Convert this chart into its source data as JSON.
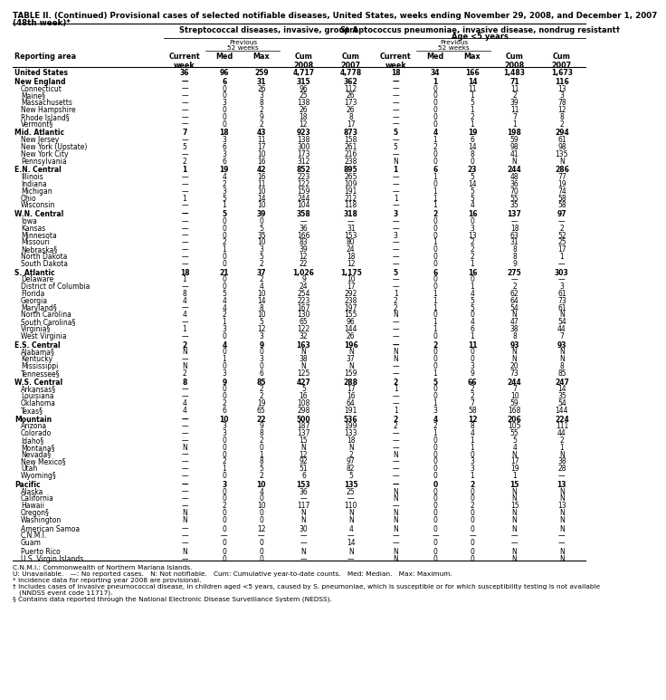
{
  "title_line1": "TABLE II. (Continued) Provisional cases of selected notifiable diseases, United States, weeks ending November 29, 2008, and December 1, 2007",
  "title_line2": "(48th week)*",
  "col_group1": "Streptococcal diseases, invasive, group A",
  "col_group2_line1": "Streptococcus pneumoniae, invasive disease, nondrug resistant†",
  "col_group2_line2": "Age <5 years",
  "footnotes": [
    "C.N.M.I.: Commonwealth of Northern Mariana Islands.",
    "U: Unavailable.   —: No reported cases.   N: Not notifiable.   Cum: Cumulative year-to-date counts.   Med: Median.   Max: Maximum.",
    "* Incidence data for reporting year 2008 are provisional.",
    "† Includes cases of invasive pneumococcal disease, in children aged <5 years, caused by S. pneumoniae, which is susceptible or for which susceptibility testing is not available",
    "   (NNDSS event code 11717).",
    "§ Contains data reported through the National Electronic Disease Surveillance System (NEDSS)."
  ],
  "rows": [
    [
      "United States",
      "36",
      "96",
      "259",
      "4,717",
      "4,778",
      "18",
      "34",
      "166",
      "1,483",
      "1,673"
    ],
    [
      "New England",
      "—",
      "6",
      "31",
      "315",
      "362",
      "—",
      "1",
      "14",
      "71",
      "116"
    ],
    [
      "Connecticut",
      "—",
      "0",
      "26",
      "96",
      "112",
      "—",
      "0",
      "11",
      "11",
      "13"
    ],
    [
      "Maine§",
      "—",
      "0",
      "3",
      "25",
      "26",
      "—",
      "0",
      "1",
      "2",
      "3"
    ],
    [
      "Massachusetts",
      "—",
      "3",
      "8",
      "138",
      "173",
      "—",
      "0",
      "5",
      "39",
      "78"
    ],
    [
      "New Hampshire",
      "—",
      "0",
      "2",
      "26",
      "26",
      "—",
      "0",
      "1",
      "11",
      "12"
    ],
    [
      "Rhode Island§",
      "—",
      "0",
      "9",
      "18",
      "8",
      "—",
      "0",
      "2",
      "7",
      "8"
    ],
    [
      "Vermont§",
      "—",
      "0",
      "2",
      "12",
      "17",
      "—",
      "0",
      "1",
      "1",
      "2"
    ],
    [
      "Mid. Atlantic",
      "7",
      "18",
      "43",
      "923",
      "873",
      "5",
      "4",
      "19",
      "198",
      "294"
    ],
    [
      "New Jersey",
      "—",
      "3",
      "11",
      "138",
      "158",
      "—",
      "1",
      "6",
      "59",
      "61"
    ],
    [
      "New York (Upstate)",
      "5",
      "6",
      "17",
      "300",
      "261",
      "5",
      "2",
      "14",
      "98",
      "98"
    ],
    [
      "New York City",
      "—",
      "3",
      "10",
      "173",
      "216",
      "—",
      "0",
      "8",
      "41",
      "135"
    ],
    [
      "Pennsylvania",
      "2",
      "6",
      "16",
      "312",
      "238",
      "N",
      "0",
      "0",
      "N",
      "N"
    ],
    [
      "E.N. Central",
      "1",
      "19",
      "42",
      "852",
      "895",
      "1",
      "6",
      "23",
      "244",
      "286"
    ],
    [
      "Illinois",
      "—",
      "4",
      "16",
      "223",
      "265",
      "—",
      "1",
      "5",
      "48",
      "77"
    ],
    [
      "Indiana",
      "—",
      "2",
      "11",
      "122",
      "109",
      "—",
      "0",
      "14",
      "36",
      "19"
    ],
    [
      "Michigan",
      "—",
      "3",
      "10",
      "159",
      "191",
      "—",
      "1",
      "5",
      "70",
      "74"
    ],
    [
      "Ohio",
      "1",
      "5",
      "14",
      "244",
      "212",
      "1",
      "1",
      "5",
      "55",
      "58"
    ],
    [
      "Wisconsin",
      "—",
      "1",
      "10",
      "104",
      "118",
      "—",
      "1",
      "4",
      "35",
      "58"
    ],
    [
      "W.N. Central",
      "—",
      "5",
      "39",
      "358",
      "318",
      "3",
      "2",
      "16",
      "137",
      "97"
    ],
    [
      "Iowa",
      "—",
      "0",
      "0",
      "—",
      "—",
      "—",
      "0",
      "0",
      "—",
      "—"
    ],
    [
      "Kansas",
      "—",
      "0",
      "5",
      "36",
      "31",
      "—",
      "0",
      "3",
      "18",
      "2"
    ],
    [
      "Minnesota",
      "—",
      "0",
      "35",
      "166",
      "153",
      "3",
      "0",
      "13",
      "63",
      "52"
    ],
    [
      "Missouri",
      "—",
      "2",
      "10",
      "83",
      "80",
      "—",
      "1",
      "2",
      "31",
      "25"
    ],
    [
      "Nebraska§",
      "—",
      "1",
      "3",
      "39",
      "24",
      "—",
      "0",
      "2",
      "8",
      "17"
    ],
    [
      "North Dakota",
      "—",
      "0",
      "5",
      "12",
      "18",
      "—",
      "0",
      "2",
      "8",
      "1"
    ],
    [
      "South Dakota",
      "—",
      "0",
      "2",
      "22",
      "12",
      "—",
      "0",
      "1",
      "9",
      "—"
    ],
    [
      "S. Atlantic",
      "18",
      "21",
      "37",
      "1,026",
      "1,175",
      "5",
      "6",
      "16",
      "275",
      "303"
    ],
    [
      "Delaware",
      "1",
      "0",
      "2",
      "9",
      "10",
      "—",
      "0",
      "0",
      "—",
      "—"
    ],
    [
      "District of Columbia",
      "—",
      "0",
      "4",
      "24",
      "17",
      "—",
      "0",
      "1",
      "2",
      "3"
    ],
    [
      "Florida",
      "8",
      "5",
      "10",
      "254",
      "292",
      "1",
      "1",
      "4",
      "62",
      "61"
    ],
    [
      "Georgia",
      "4",
      "4",
      "14",
      "223",
      "238",
      "2",
      "1",
      "5",
      "64",
      "73"
    ],
    [
      "Maryland§",
      "—",
      "4",
      "8",
      "167",
      "197",
      "2",
      "1",
      "5",
      "54",
      "61"
    ],
    [
      "North Carolina",
      "4",
      "2",
      "10",
      "130",
      "155",
      "N",
      "0",
      "0",
      "N",
      "N"
    ],
    [
      "South Carolina§",
      "—",
      "1",
      "5",
      "65",
      "96",
      "—",
      "1",
      "4",
      "47",
      "54"
    ],
    [
      "Virginia§",
      "1",
      "3",
      "12",
      "122",
      "144",
      "—",
      "1",
      "6",
      "38",
      "44"
    ],
    [
      "West Virginia",
      "—",
      "0",
      "3",
      "32",
      "26",
      "—",
      "0",
      "1",
      "8",
      "7"
    ],
    [
      "E.S. Central",
      "2",
      "4",
      "9",
      "163",
      "196",
      "—",
      "2",
      "11",
      "93",
      "93"
    ],
    [
      "Alabama§",
      "N",
      "0",
      "0",
      "N",
      "N",
      "N",
      "0",
      "0",
      "N",
      "N"
    ],
    [
      "Kentucky",
      "—",
      "1",
      "3",
      "38",
      "37",
      "N",
      "0",
      "0",
      "N",
      "N"
    ],
    [
      "Mississippi",
      "N",
      "0",
      "0",
      "N",
      "N",
      "—",
      "0",
      "3",
      "20",
      "8"
    ],
    [
      "Tennessee§",
      "2",
      "3",
      "6",
      "125",
      "159",
      "—",
      "1",
      "9",
      "73",
      "85"
    ],
    [
      "W.S. Central",
      "8",
      "9",
      "85",
      "427",
      "288",
      "2",
      "5",
      "66",
      "244",
      "247"
    ],
    [
      "Arkansas§",
      "—",
      "0",
      "2",
      "5",
      "17",
      "1",
      "0",
      "2",
      "7",
      "14"
    ],
    [
      "Louisiana",
      "—",
      "0",
      "2",
      "16",
      "16",
      "—",
      "0",
      "2",
      "10",
      "35"
    ],
    [
      "Oklahoma",
      "4",
      "2",
      "19",
      "108",
      "64",
      "—",
      "1",
      "7",
      "59",
      "54"
    ],
    [
      "Texas§",
      "4",
      "6",
      "65",
      "298",
      "191",
      "1",
      "3",
      "58",
      "168",
      "144"
    ],
    [
      "Mountain",
      "—",
      "10",
      "22",
      "500",
      "536",
      "2",
      "4",
      "12",
      "206",
      "224"
    ],
    [
      "Arizona",
      "—",
      "3",
      "9",
      "187",
      "199",
      "2",
      "2",
      "8",
      "105",
      "111"
    ],
    [
      "Colorado",
      "—",
      "3",
      "8",
      "137",
      "133",
      "—",
      "1",
      "4",
      "55",
      "44"
    ],
    [
      "Idaho§",
      "—",
      "0",
      "2",
      "15",
      "18",
      "—",
      "0",
      "1",
      "5",
      "2"
    ],
    [
      "Montana§",
      "N",
      "0",
      "0",
      "N",
      "N",
      "—",
      "0",
      "1",
      "4",
      "1"
    ],
    [
      "Nevada§",
      "—",
      "0",
      "1",
      "12",
      "2",
      "N",
      "0",
      "0",
      "N",
      "N"
    ],
    [
      "New Mexico§",
      "—",
      "2",
      "8",
      "92",
      "97",
      "—",
      "0",
      "3",
      "17",
      "38"
    ],
    [
      "Utah",
      "—",
      "1",
      "5",
      "51",
      "82",
      "—",
      "0",
      "3",
      "19",
      "28"
    ],
    [
      "Wyoming§",
      "—",
      "0",
      "2",
      "6",
      "5",
      "—",
      "0",
      "1",
      "1",
      "—"
    ],
    [
      "Pacific",
      "—",
      "3",
      "10",
      "153",
      "135",
      "—",
      "0",
      "2",
      "15",
      "13"
    ],
    [
      "Alaska",
      "—",
      "0",
      "4",
      "36",
      "25",
      "N",
      "0",
      "0",
      "N",
      "N"
    ],
    [
      "California",
      "—",
      "0",
      "0",
      "—",
      "—",
      "N",
      "0",
      "0",
      "N",
      "N"
    ],
    [
      "Hawaii",
      "—",
      "2",
      "10",
      "117",
      "110",
      "—",
      "0",
      "2",
      "15",
      "13"
    ],
    [
      "Oregon§",
      "N",
      "0",
      "0",
      "N",
      "N",
      "N",
      "0",
      "0",
      "N",
      "N"
    ],
    [
      "Washington",
      "N",
      "0",
      "0",
      "N",
      "N",
      "N",
      "0",
      "0",
      "N",
      "N"
    ],
    [
      "American Samoa",
      "—",
      "0",
      "12",
      "30",
      "4",
      "N",
      "0",
      "0",
      "N",
      "N"
    ],
    [
      "C.N.M.I.",
      "—",
      "—",
      "—",
      "—",
      "—",
      "—",
      "—",
      "—",
      "—",
      "—"
    ],
    [
      "Guam",
      "—",
      "0",
      "0",
      "—",
      "14",
      "—",
      "0",
      "0",
      "—",
      "—"
    ],
    [
      "Puerto Rico",
      "N",
      "0",
      "0",
      "N",
      "N",
      "N",
      "0",
      "0",
      "N",
      "N"
    ],
    [
      "U.S. Virgin Islands",
      "—",
      "0",
      "0",
      "—",
      "—",
      "N",
      "0",
      "0",
      "N",
      "N"
    ]
  ],
  "bold_rows": [
    0,
    1,
    8,
    13,
    19,
    27,
    37,
    42,
    47,
    56
  ],
  "section_rows": [
    1,
    8,
    13,
    19,
    27,
    37,
    42,
    47,
    56
  ],
  "gap_before": [
    1,
    8,
    13,
    19,
    27,
    37,
    42,
    47,
    56,
    62,
    65
  ]
}
